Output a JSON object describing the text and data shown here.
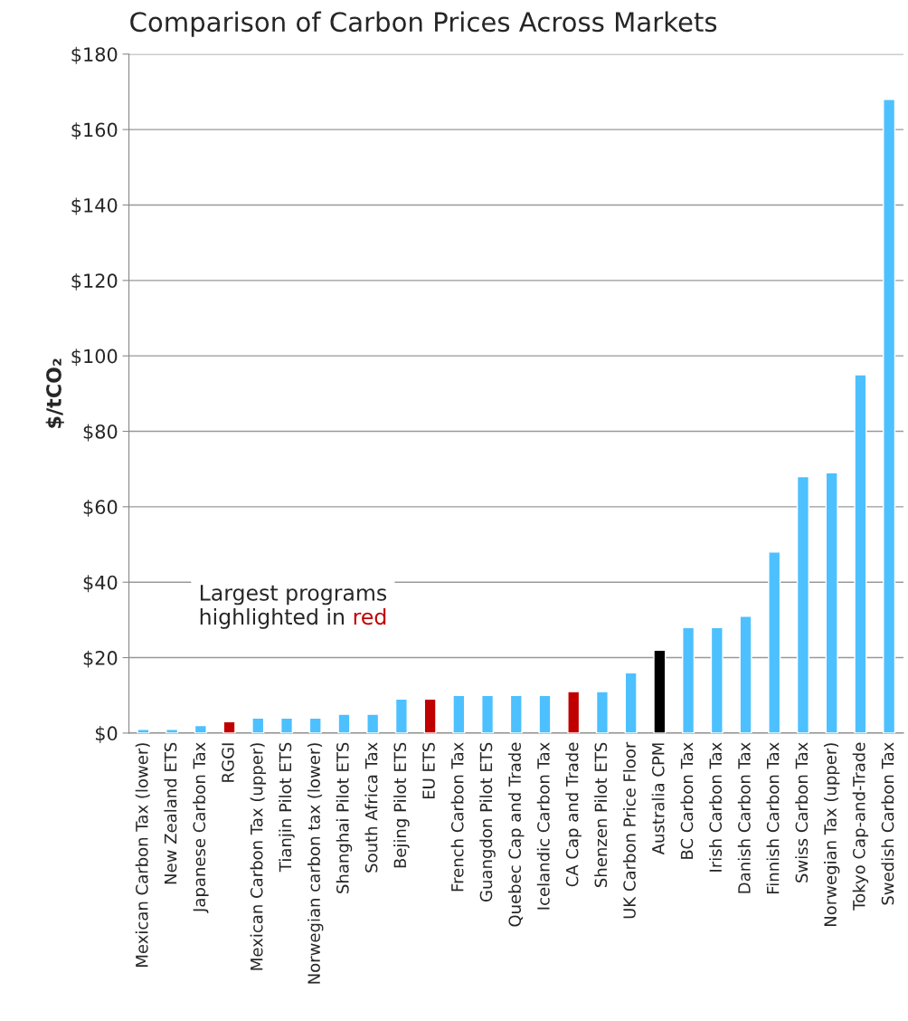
{
  "chart_data": {
    "type": "bar",
    "title": "Comparison of Carbon Prices Across Markets",
    "ylabel": "$/tCO₂",
    "categories": [
      "Mexican Carbon Tax (lower)",
      "New Zealand ETS",
      "Japanese Carbon Tax",
      "RGGI",
      "Mexican Carbon Tax (upper)",
      "Tianjin Pilot ETS",
      "Norwegian carbon tax (lower)",
      "Shanghai Pilot ETS",
      "South Africa Tax",
      "Bejing Pilot ETS",
      "EU ETS",
      "French Carbon Tax",
      "Guangdon Pilot ETS",
      "Quebec Cap and Trade",
      "Icelandic Carbon Tax",
      "CA Cap and Trade",
      "Shenzen Pilot ETS",
      "UK Carbon Price Floor",
      "Australia CPM",
      "BC Carbon Tax",
      "Irish Carbon Tax",
      "Danish Carbon Tax",
      "Finnish Carbon Tax",
      "Swiss Carbon Tax",
      "Norwegian Tax (upper)",
      "Tokyo Cap-and-Trade",
      "Swedish Carbon Tax"
    ],
    "values": [
      1,
      1,
      2,
      3,
      4,
      4,
      4,
      5,
      5,
      9,
      9,
      10,
      10,
      10,
      10,
      11,
      11,
      16,
      22,
      28,
      28,
      31,
      48,
      68,
      69,
      95,
      168
    ],
    "colors": [
      "#4dc0ff",
      "#4dc0ff",
      "#4dc0ff",
      "#c00000",
      "#4dc0ff",
      "#4dc0ff",
      "#4dc0ff",
      "#4dc0ff",
      "#4dc0ff",
      "#4dc0ff",
      "#c00000",
      "#4dc0ff",
      "#4dc0ff",
      "#4dc0ff",
      "#4dc0ff",
      "#c00000",
      "#4dc0ff",
      "#4dc0ff",
      "#000000",
      "#4dc0ff",
      "#4dc0ff",
      "#4dc0ff",
      "#4dc0ff",
      "#4dc0ff",
      "#4dc0ff",
      "#4dc0ff",
      "#4dc0ff"
    ],
    "ylim": [
      0,
      180
    ],
    "yticks": [
      {
        "value": 0,
        "label": "$0"
      },
      {
        "value": 20,
        "label": "$20"
      },
      {
        "value": 40,
        "label": "$40"
      },
      {
        "value": 60,
        "label": "$60"
      },
      {
        "value": 80,
        "label": "$80"
      },
      {
        "value": 100,
        "label": "$100"
      },
      {
        "value": 120,
        "label": "$120"
      },
      {
        "value": 140,
        "label": "$140"
      },
      {
        "value": 160,
        "label": "$160"
      },
      {
        "value": 180,
        "label": "$180"
      }
    ],
    "grid": "y",
    "annotations": [
      "Largest programs\nhighlighted in red"
    ]
  }
}
